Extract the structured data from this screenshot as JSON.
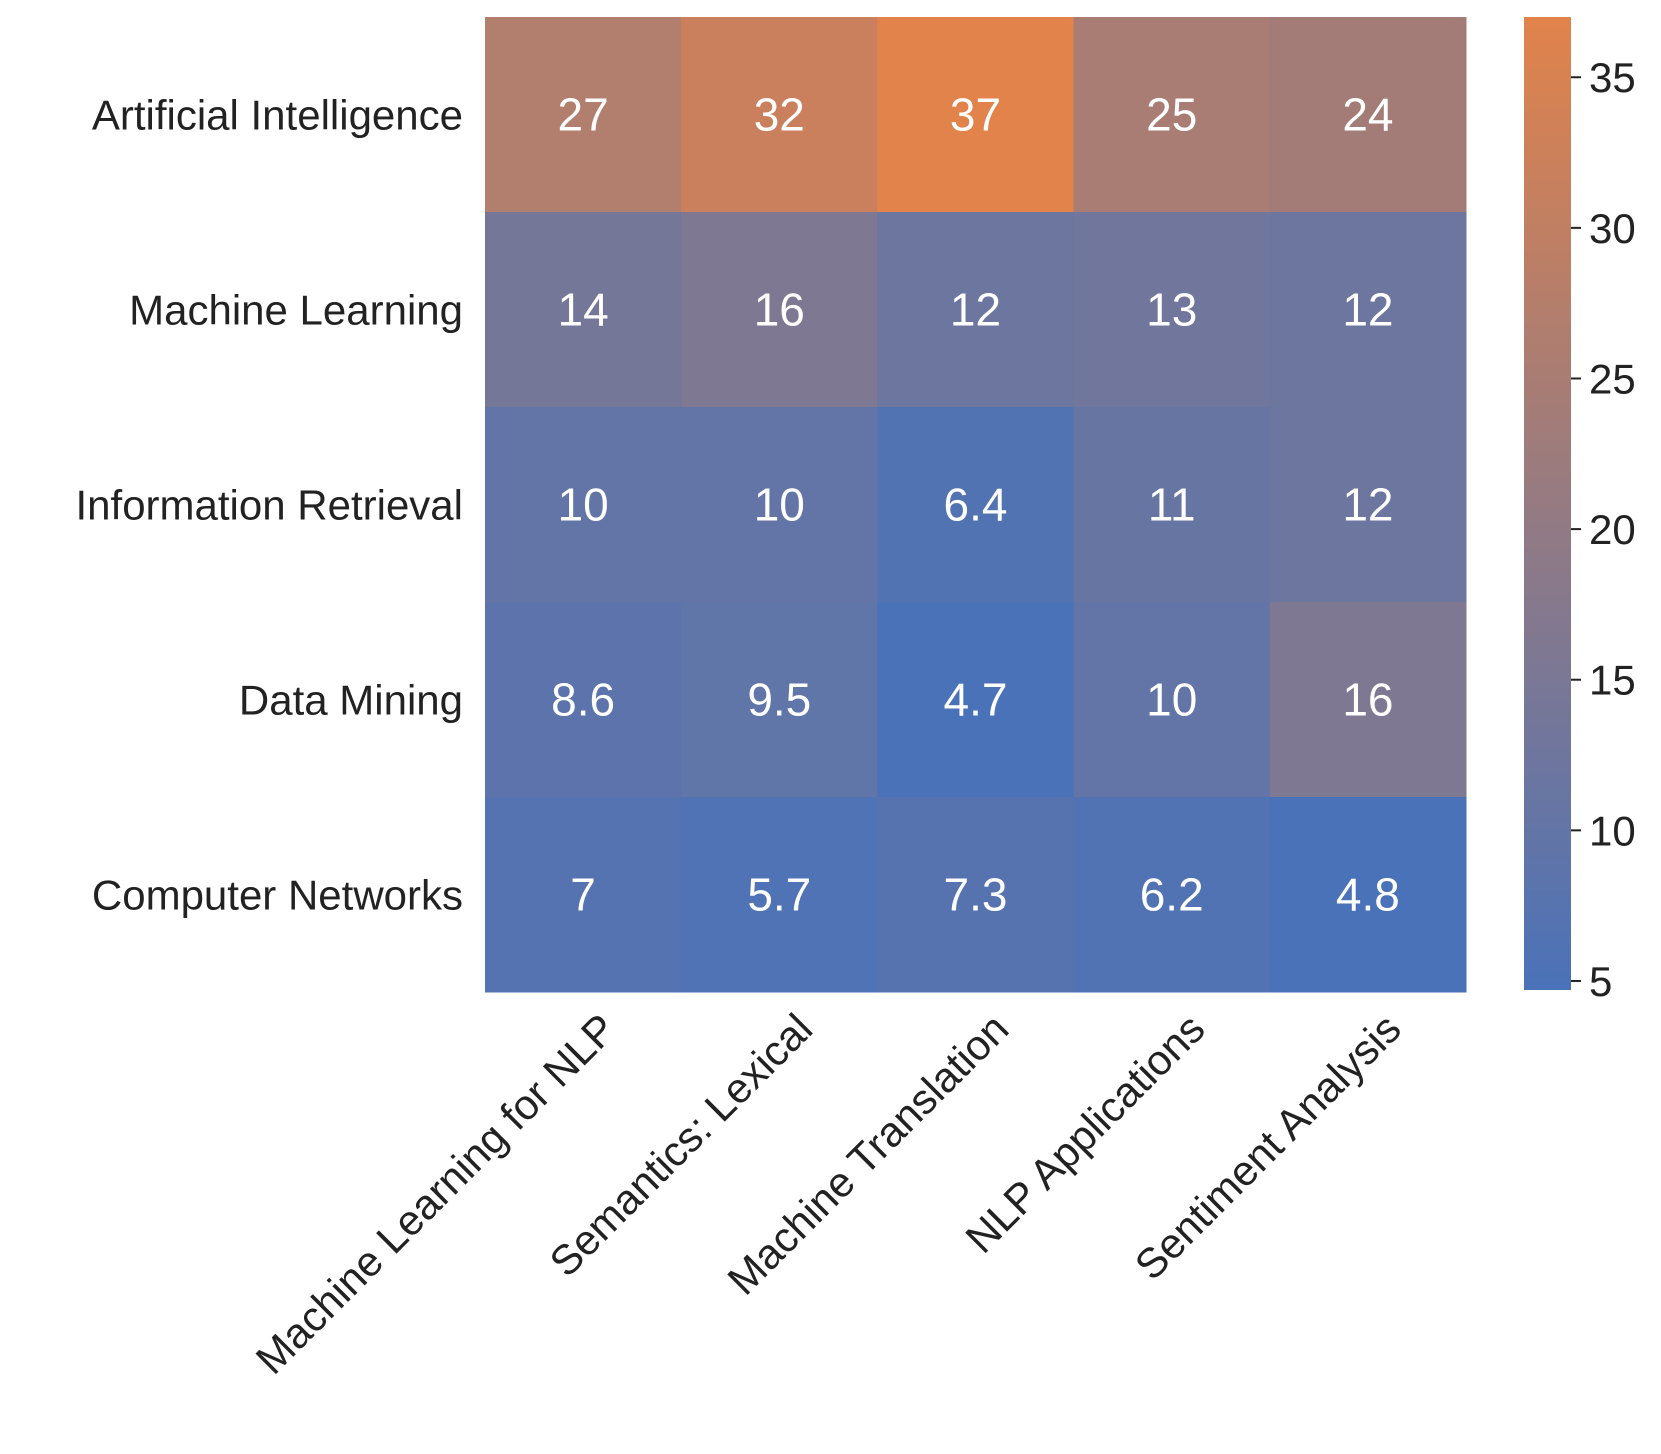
{
  "chart_data": {
    "type": "heatmap",
    "title": "",
    "xlabel": "",
    "ylabel": "",
    "rows": [
      "Artificial Intelligence",
      "Machine Learning",
      "Information Retrieval",
      "Data Mining",
      "Computer Networks"
    ],
    "columns": [
      "Machine Learning for NLP",
      "Semantics: Lexical",
      "Machine Translation",
      "NLP Applications",
      "Sentiment Analysis"
    ],
    "values": [
      [
        27,
        32,
        37,
        25,
        24
      ],
      [
        14,
        16,
        12,
        13,
        12
      ],
      [
        10,
        10,
        6.4,
        11,
        12
      ],
      [
        8.6,
        9.5,
        4.7,
        10,
        16
      ],
      [
        7,
        5.7,
        7.3,
        6.2,
        4.8
      ]
    ],
    "labels": [
      [
        "27",
        "32",
        "37",
        "25",
        "24"
      ],
      [
        "14",
        "16",
        "12",
        "13",
        "12"
      ],
      [
        "10",
        "10",
        "6.4",
        "11",
        "12"
      ],
      [
        "8.6",
        "9.5",
        "4.7",
        "10",
        "16"
      ],
      [
        "7",
        "5.7",
        "7.3",
        "6.2",
        "4.8"
      ]
    ],
    "colorbar": {
      "min": 4.7,
      "max": 37,
      "ticks": [
        5,
        10,
        15,
        20,
        25,
        30,
        35
      ],
      "tick_labels": [
        "5",
        "10",
        "15",
        "20",
        "25",
        "30",
        "35"
      ],
      "low_color": "#4a72b8",
      "high_color": "#e1834b"
    },
    "cell_text_color": "#ffffff",
    "axis_text_color": "#222222"
  }
}
